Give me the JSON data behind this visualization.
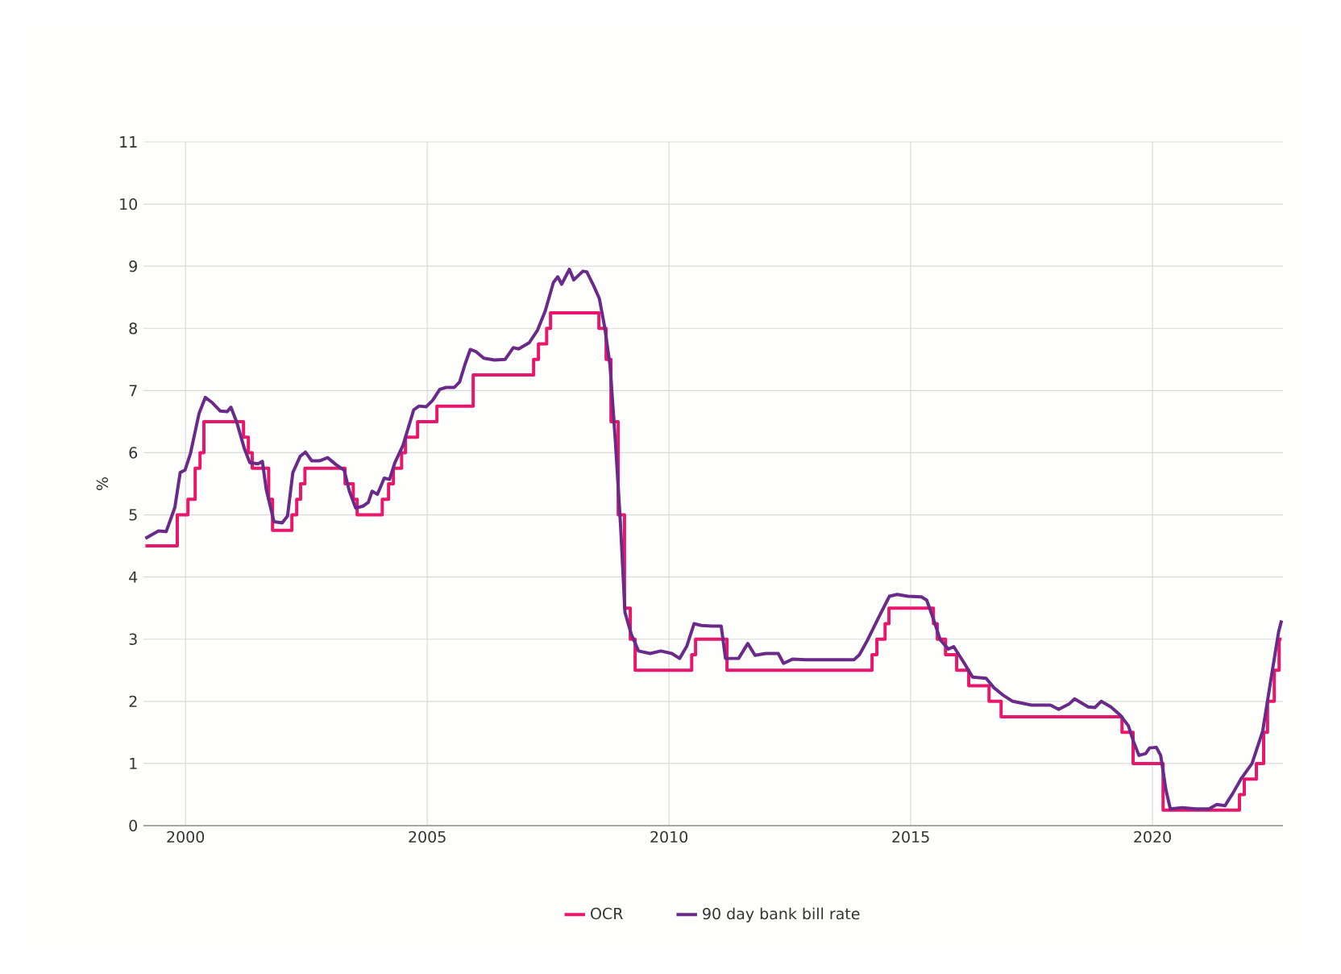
{
  "chart_data": {
    "type": "line",
    "ylabel": "%",
    "xlim": [
      1999.13,
      2022.7
    ],
    "ylim": [
      0,
      11
    ],
    "xticks": [
      2000,
      2005,
      2010,
      2015,
      2020
    ],
    "yticks": [
      0,
      1,
      2,
      3,
      4,
      5,
      6,
      7,
      8,
      9,
      10,
      11
    ],
    "grid": true,
    "legend": "bottom",
    "marker": "none",
    "line_style": "solid",
    "series": [
      {
        "name": "OCR",
        "type": "step",
        "color": "#e8176b",
        "x": [
          1999.17,
          1999.83,
          2000.05,
          2000.2,
          2000.3,
          2000.38,
          2001.2,
          2001.3,
          2001.38,
          2001.72,
          2001.8,
          2002.2,
          2002.3,
          2002.38,
          2002.47,
          2003.3,
          2003.47,
          2003.55,
          2004.07,
          2004.2,
          2004.3,
          2004.47,
          2004.55,
          2004.8,
          2005.2,
          2005.95,
          2007.2,
          2007.3,
          2007.47,
          2007.55,
          2008.55,
          2008.7,
          2008.8,
          2008.95,
          2009.08,
          2009.2,
          2009.3,
          2010.47,
          2010.55,
          2011.2,
          2014.2,
          2014.3,
          2014.47,
          2014.55,
          2015.47,
          2015.55,
          2015.72,
          2015.95,
          2016.2,
          2016.62,
          2016.87,
          2019.37,
          2019.6,
          2020.22,
          2021.8,
          2021.9,
          2022.15,
          2022.3,
          2022.38,
          2022.52,
          2022.62,
          2022.67
        ],
        "values": [
          4.5,
          5.0,
          5.25,
          5.75,
          6.0,
          6.5,
          6.25,
          6.0,
          5.75,
          5.25,
          4.75,
          5.0,
          5.25,
          5.5,
          5.75,
          5.5,
          5.25,
          5.0,
          5.25,
          5.5,
          5.75,
          6.0,
          6.25,
          6.5,
          6.75,
          7.25,
          7.5,
          7.75,
          8.0,
          8.25,
          8.0,
          7.5,
          6.5,
          5.0,
          3.5,
          3.0,
          2.5,
          2.75,
          3.0,
          2.5,
          2.75,
          3.0,
          3.25,
          3.5,
          3.25,
          3.0,
          2.75,
          2.5,
          2.25,
          2.0,
          1.75,
          1.5,
          1.0,
          0.25,
          0.5,
          0.75,
          1.0,
          1.5,
          2.0,
          2.5,
          3.0,
          3.0
        ]
      },
      {
        "name": "90 day bank bill rate",
        "color": "#6a2a8a",
        "x": [
          1999.17,
          1999.44,
          1999.6,
          1999.78,
          1999.89,
          1999.99,
          2000.1,
          2000.28,
          2000.41,
          2000.56,
          2000.72,
          2000.86,
          2000.94,
          2001.06,
          2001.22,
          2001.33,
          2001.5,
          2001.59,
          2001.67,
          2001.83,
          2002.0,
          2002.11,
          2002.22,
          2002.37,
          2002.48,
          2002.61,
          2002.78,
          2002.94,
          2003.11,
          2003.28,
          2003.39,
          2003.52,
          2003.67,
          2003.78,
          2003.86,
          2003.97,
          2004.11,
          2004.22,
          2004.33,
          2004.5,
          2004.72,
          2004.83,
          2004.98,
          2005.11,
          2005.26,
          2005.39,
          2005.56,
          2005.67,
          2005.78,
          2005.89,
          2006.0,
          2006.17,
          2006.39,
          2006.61,
          2006.78,
          2006.89,
          2007.11,
          2007.28,
          2007.44,
          2007.61,
          2007.7,
          2007.78,
          2007.94,
          2008.03,
          2008.22,
          2008.3,
          2008.44,
          2008.56,
          2008.67,
          2008.78,
          2008.89,
          2009.0,
          2009.09,
          2009.22,
          2009.37,
          2009.61,
          2009.83,
          2010.06,
          2010.22,
          2010.37,
          2010.52,
          2010.67,
          2010.89,
          2011.08,
          2011.17,
          2011.44,
          2011.63,
          2011.78,
          2012.0,
          2012.26,
          2012.37,
          2012.56,
          2012.83,
          2013.28,
          2013.83,
          2013.94,
          2014.11,
          2014.33,
          2014.56,
          2014.72,
          2014.94,
          2015.22,
          2015.33,
          2015.48,
          2015.61,
          2015.78,
          2015.89,
          2016.11,
          2016.28,
          2016.56,
          2016.72,
          2016.89,
          2017.11,
          2017.5,
          2017.89,
          2018.06,
          2018.28,
          2018.39,
          2018.67,
          2018.81,
          2018.94,
          2019.14,
          2019.33,
          2019.5,
          2019.61,
          2019.72,
          2019.86,
          2019.94,
          2020.08,
          2020.17,
          2020.28,
          2020.37,
          2020.62,
          2020.89,
          2021.17,
          2021.33,
          2021.5,
          2021.67,
          2021.83,
          2022.06,
          2022.28,
          2022.44,
          2022.61,
          2022.67
        ],
        "values": [
          4.62,
          4.74,
          4.73,
          5.12,
          5.68,
          5.72,
          5.98,
          6.63,
          6.89,
          6.8,
          6.67,
          6.66,
          6.73,
          6.49,
          6.06,
          5.84,
          5.82,
          5.86,
          5.41,
          4.89,
          4.87,
          4.98,
          5.68,
          5.94,
          6.01,
          5.87,
          5.87,
          5.92,
          5.81,
          5.72,
          5.38,
          5.11,
          5.14,
          5.2,
          5.38,
          5.33,
          5.59,
          5.57,
          5.84,
          6.12,
          6.69,
          6.75,
          6.74,
          6.84,
          7.02,
          7.05,
          7.05,
          7.14,
          7.42,
          7.66,
          7.63,
          7.52,
          7.49,
          7.5,
          7.69,
          7.67,
          7.77,
          7.97,
          8.28,
          8.74,
          8.83,
          8.71,
          8.95,
          8.78,
          8.92,
          8.91,
          8.69,
          8.48,
          8.02,
          7.41,
          6.2,
          4.81,
          3.43,
          3.08,
          2.81,
          2.77,
          2.81,
          2.77,
          2.69,
          2.89,
          3.25,
          3.22,
          3.21,
          3.21,
          2.69,
          2.69,
          2.93,
          2.74,
          2.77,
          2.77,
          2.61,
          2.68,
          2.67,
          2.67,
          2.67,
          2.75,
          2.99,
          3.34,
          3.69,
          3.72,
          3.69,
          3.68,
          3.63,
          3.3,
          2.99,
          2.84,
          2.88,
          2.61,
          2.39,
          2.37,
          2.22,
          2.11,
          2.0,
          1.94,
          1.94,
          1.87,
          1.96,
          2.04,
          1.91,
          1.9,
          2.0,
          1.91,
          1.78,
          1.61,
          1.35,
          1.13,
          1.16,
          1.25,
          1.26,
          1.13,
          0.57,
          0.27,
          0.29,
          0.27,
          0.27,
          0.34,
          0.32,
          0.53,
          0.75,
          1.0,
          1.52,
          2.3,
          3.12,
          3.3
        ]
      }
    ]
  }
}
